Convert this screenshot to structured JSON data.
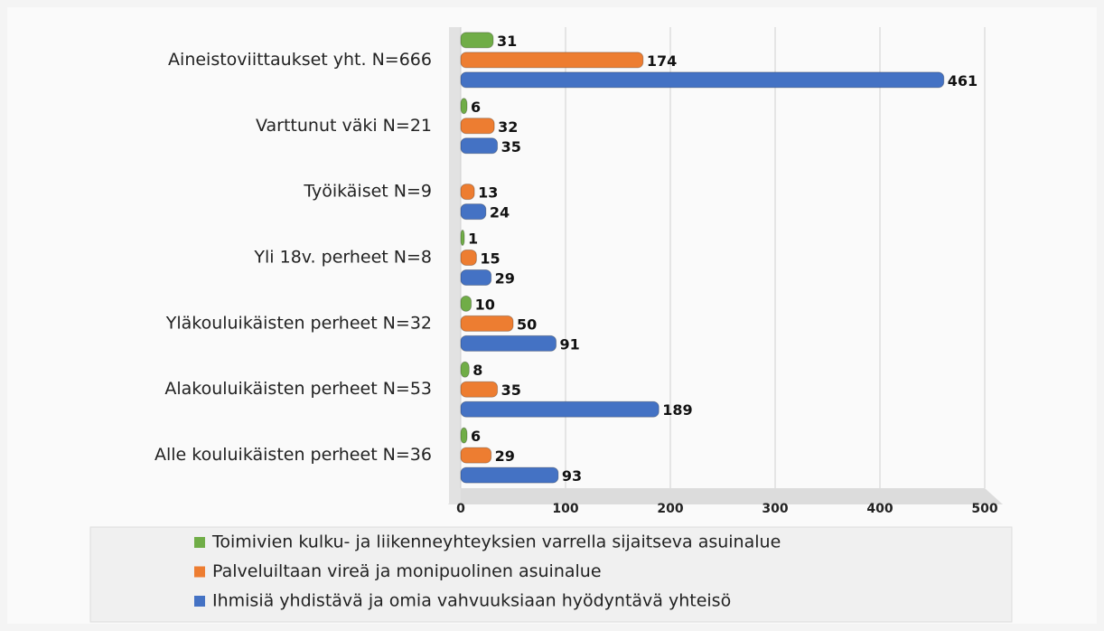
{
  "chart_data": {
    "type": "bar",
    "orientation": "horizontal",
    "categories": [
      "Aineistoviittaukset yht. N=666",
      "Varttunut väki N=21",
      "Työikäiset N=9",
      "Yli 18v. perheet N=8",
      "Yläkouluikäisten perheet N=32",
      "Alakouluikäisten perheet N=53",
      "Alle kouluikäisten perheet N=36"
    ],
    "series": [
      {
        "name": "Toimivien kulku- ja liikenneyhteyksien varrella sijaitseva asuinalue",
        "color": "#70ad47",
        "values": [
          31,
          6,
          null,
          1,
          10,
          8,
          6
        ]
      },
      {
        "name": "Palveluiltaan vireä ja monipuolinen asuinalue",
        "color": "#ed7d31",
        "values": [
          174,
          32,
          13,
          15,
          50,
          35,
          29
        ]
      },
      {
        "name": "Ihmisiä yhdistävä ja omia vahvuuksiaan hyödyntävä yhteisö",
        "color": "#4472c4",
        "values": [
          461,
          35,
          24,
          29,
          91,
          189,
          93
        ]
      }
    ],
    "xlim": [
      0,
      500
    ],
    "xticks": [
      0,
      100,
      200,
      300,
      400,
      500
    ],
    "grid": true,
    "legend": "bottom"
  }
}
